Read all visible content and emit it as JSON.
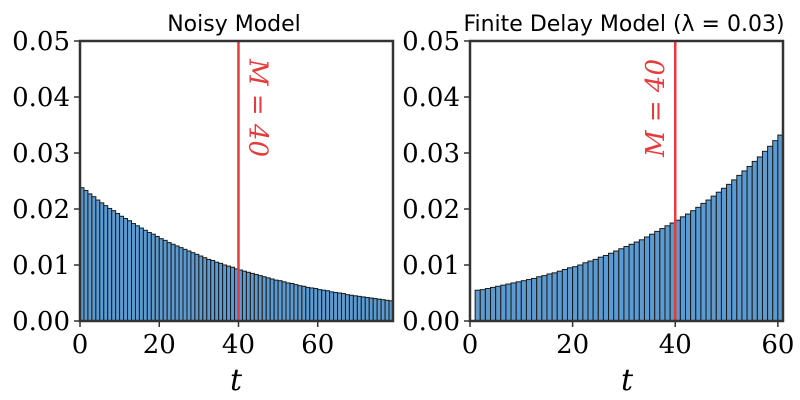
{
  "chart_data": [
    {
      "type": "bar",
      "title": "Noisy Model",
      "xlabel": "t",
      "ylabel": "",
      "xlim": [
        0,
        79
      ],
      "ylim": [
        0,
        0.05
      ],
      "xticks": [
        "0",
        "20",
        "40",
        "60"
      ],
      "yticks": [
        "0.00",
        "0.01",
        "0.02",
        "0.03",
        "0.04",
        "0.05"
      ],
      "bar_color": "#5b9bd1",
      "annotation": {
        "x": 40,
        "label": "M = 40",
        "color": "#e63b3b"
      },
      "x": [
        0,
        1,
        2,
        3,
        4,
        5,
        6,
        7,
        8,
        9,
        10,
        11,
        12,
        13,
        14,
        15,
        16,
        17,
        18,
        19,
        20,
        21,
        22,
        23,
        24,
        25,
        26,
        27,
        28,
        29,
        30,
        31,
        32,
        33,
        34,
        35,
        36,
        37,
        38,
        39,
        40,
        41,
        42,
        43,
        44,
        45,
        46,
        47,
        48,
        49,
        50,
        51,
        52,
        53,
        54,
        55,
        56,
        57,
        58,
        59,
        60,
        61,
        62,
        63,
        64,
        65,
        66,
        67,
        68,
        69,
        70,
        71,
        72,
        73,
        74,
        75,
        76,
        77,
        78
      ],
      "values": [
        0.0238,
        0.0233,
        0.0227,
        0.0222,
        0.0216,
        0.0211,
        0.0206,
        0.0201,
        0.0197,
        0.0192,
        0.0187,
        0.0183,
        0.0179,
        0.0174,
        0.017,
        0.0166,
        0.0162,
        0.0158,
        0.0155,
        0.0151,
        0.0147,
        0.0144,
        0.014,
        0.0137,
        0.0134,
        0.0131,
        0.0128,
        0.0125,
        0.0122,
        0.0119,
        0.0116,
        0.0113,
        0.011,
        0.0108,
        0.0105,
        0.0103,
        0.01,
        0.0098,
        0.0096,
        0.0093,
        0.0091,
        0.0089,
        0.0087,
        0.0085,
        0.0083,
        0.0081,
        0.0079,
        0.0077,
        0.0075,
        0.0073,
        0.0072,
        0.007,
        0.0068,
        0.0067,
        0.0065,
        0.0063,
        0.0062,
        0.006,
        0.0059,
        0.0058,
        0.0056,
        0.0055,
        0.0054,
        0.0052,
        0.0051,
        0.005,
        0.0049,
        0.0047,
        0.0046,
        0.0045,
        0.0044,
        0.0043,
        0.0042,
        0.0041,
        0.004,
        0.0039,
        0.0038,
        0.0037,
        0.0036
      ]
    },
    {
      "type": "bar",
      "title": "Finite Delay Model (λ = 0.03)",
      "xlabel": "t",
      "ylabel": "",
      "xlim": [
        0,
        61
      ],
      "ylim": [
        0,
        0.05
      ],
      "xticks": [
        "0",
        "20",
        "40",
        "60"
      ],
      "yticks": [
        "0.00",
        "0.01",
        "0.02",
        "0.03",
        "0.04",
        "0.05"
      ],
      "bar_color": "#5b9bd1",
      "annotation": {
        "x": 40,
        "label": "M = 40",
        "color": "#e63b3b"
      },
      "x": [
        1,
        2,
        3,
        4,
        5,
        6,
        7,
        8,
        9,
        10,
        11,
        12,
        13,
        14,
        15,
        16,
        17,
        18,
        19,
        20,
        21,
        22,
        23,
        24,
        25,
        26,
        27,
        28,
        29,
        30,
        31,
        32,
        33,
        34,
        35,
        36,
        37,
        38,
        39,
        40,
        41,
        42,
        43,
        44,
        45,
        46,
        47,
        48,
        49,
        50,
        51,
        52,
        53,
        54,
        55,
        56,
        57,
        58,
        59,
        60
      ],
      "values": [
        0.0055,
        0.0056,
        0.0058,
        0.006,
        0.0062,
        0.0064,
        0.0066,
        0.0068,
        0.007,
        0.0072,
        0.0074,
        0.0076,
        0.0079,
        0.0081,
        0.0084,
        0.0086,
        0.0089,
        0.0092,
        0.0095,
        0.0097,
        0.01,
        0.0104,
        0.0107,
        0.011,
        0.0114,
        0.0117,
        0.0121,
        0.0125,
        0.0129,
        0.0133,
        0.0137,
        0.0141,
        0.0145,
        0.015,
        0.0155,
        0.016,
        0.0165,
        0.017,
        0.0175,
        0.018,
        0.0186,
        0.0191,
        0.0197,
        0.0203,
        0.021,
        0.0216,
        0.0223,
        0.023,
        0.0237,
        0.0244,
        0.0252,
        0.026,
        0.0268,
        0.0276,
        0.0285,
        0.0293,
        0.0303,
        0.0312,
        0.0322,
        0.0332
      ]
    }
  ]
}
